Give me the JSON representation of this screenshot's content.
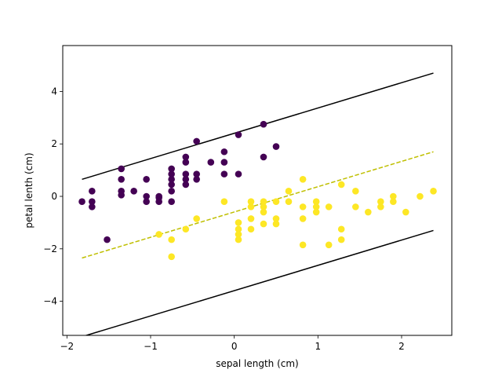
{
  "chart_data": {
    "type": "scatter",
    "title": "",
    "xlabel": "sepal length (cm)",
    "ylabel": "petal lenth (cm)",
    "xlim": [
      -2.05,
      2.6
    ],
    "ylim": [
      -5.3,
      5.75
    ],
    "xticks": [
      -2,
      -1,
      0,
      1,
      2
    ],
    "yticks": [
      -4,
      -2,
      0,
      2,
      4
    ],
    "xtick_labels": [
      "−2",
      "−1",
      "0",
      "1",
      "2"
    ],
    "ytick_labels": [
      "−4",
      "−2",
      "0",
      "2",
      "4"
    ],
    "grid": false,
    "legend": "none",
    "colors": {
      "class_0": "#440154",
      "class_1": "#fde725",
      "margin_line": "#000000",
      "decision_line": "#bfbf00"
    },
    "series": [
      {
        "class": 0,
        "color": "#440154",
        "points": [
          [
            -1.82,
            -0.2
          ],
          [
            -1.7,
            0.2
          ],
          [
            -1.7,
            -0.2
          ],
          [
            -1.7,
            -0.4
          ],
          [
            -1.52,
            -1.65
          ],
          [
            -1.35,
            1.05
          ],
          [
            -1.35,
            0.65
          ],
          [
            -1.35,
            0.2
          ],
          [
            -1.35,
            0.05
          ],
          [
            -1.2,
            0.2
          ],
          [
            -1.05,
            0.65
          ],
          [
            -1.05,
            0.0
          ],
          [
            -1.05,
            -0.2
          ],
          [
            -0.9,
            0.0
          ],
          [
            -0.9,
            -0.05
          ],
          [
            -0.9,
            -0.2
          ],
          [
            -0.75,
            1.05
          ],
          [
            -0.75,
            0.85
          ],
          [
            -0.75,
            0.65
          ],
          [
            -0.75,
            0.45
          ],
          [
            -0.75,
            0.2
          ],
          [
            -0.75,
            -0.2
          ],
          [
            -0.58,
            1.5
          ],
          [
            -0.58,
            1.3
          ],
          [
            -0.58,
            0.85
          ],
          [
            -0.58,
            0.65
          ],
          [
            -0.58,
            0.45
          ],
          [
            -0.45,
            2.1
          ],
          [
            -0.45,
            0.85
          ],
          [
            -0.45,
            0.65
          ],
          [
            -0.28,
            1.3
          ],
          [
            -0.12,
            1.7
          ],
          [
            -0.12,
            1.3
          ],
          [
            -0.12,
            0.85
          ],
          [
            0.05,
            2.35
          ],
          [
            0.05,
            0.85
          ],
          [
            0.35,
            2.75
          ],
          [
            0.35,
            1.5
          ],
          [
            0.5,
            1.9
          ]
        ]
      },
      {
        "class": 1,
        "color": "#fde725",
        "points": [
          [
            -0.9,
            -1.45
          ],
          [
            -0.75,
            -1.65
          ],
          [
            -0.75,
            -2.3
          ],
          [
            -0.58,
            -1.25
          ],
          [
            -0.45,
            -0.85
          ],
          [
            -0.12,
            -0.2
          ],
          [
            0.05,
            -1.0
          ],
          [
            0.05,
            -1.25
          ],
          [
            0.05,
            -1.45
          ],
          [
            0.05,
            -1.65
          ],
          [
            0.2,
            -0.2
          ],
          [
            0.2,
            -0.4
          ],
          [
            0.2,
            -0.85
          ],
          [
            0.2,
            -1.25
          ],
          [
            0.35,
            -0.2
          ],
          [
            0.35,
            -0.4
          ],
          [
            0.35,
            -0.6
          ],
          [
            0.35,
            -1.05
          ],
          [
            0.5,
            -0.2
          ],
          [
            0.5,
            -0.85
          ],
          [
            0.5,
            -1.05
          ],
          [
            0.65,
            0.2
          ],
          [
            0.65,
            -0.2
          ],
          [
            0.82,
            0.65
          ],
          [
            0.82,
            -0.4
          ],
          [
            0.82,
            -0.85
          ],
          [
            0.82,
            -1.85
          ],
          [
            0.98,
            -0.2
          ],
          [
            0.98,
            -0.4
          ],
          [
            0.98,
            -0.6
          ],
          [
            1.13,
            -0.4
          ],
          [
            1.13,
            -1.85
          ],
          [
            1.28,
            0.45
          ],
          [
            1.28,
            -1.25
          ],
          [
            1.28,
            -1.65
          ],
          [
            1.45,
            0.2
          ],
          [
            1.45,
            -0.4
          ],
          [
            1.6,
            -0.6
          ],
          [
            1.75,
            -0.2
          ],
          [
            1.75,
            -0.4
          ],
          [
            1.9,
            0.0
          ],
          [
            1.9,
            -0.2
          ],
          [
            2.05,
            -0.6
          ],
          [
            2.22,
            0.0
          ],
          [
            2.38,
            0.2
          ]
        ]
      }
    ],
    "lines": [
      {
        "name": "upper-margin",
        "style": "solid",
        "color": "#000000",
        "x": [
          -1.82,
          2.38
        ],
        "y": [
          0.65,
          4.7
        ]
      },
      {
        "name": "decision-boundary",
        "style": "dashed",
        "color": "#bfbf00",
        "x": [
          -1.82,
          2.38
        ],
        "y": [
          -2.35,
          1.7
        ]
      },
      {
        "name": "lower-margin",
        "style": "solid",
        "color": "#000000",
        "x": [
          -1.82,
          2.38
        ],
        "y": [
          -5.35,
          -1.3
        ]
      }
    ]
  }
}
